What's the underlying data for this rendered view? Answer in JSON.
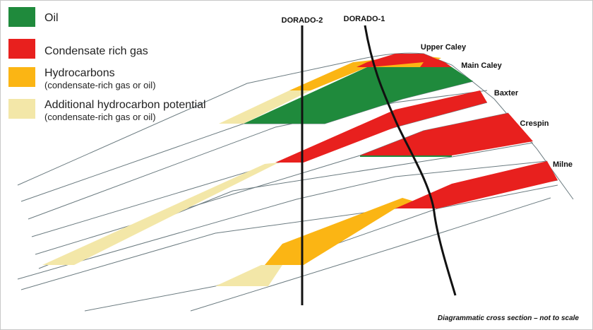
{
  "legend": [
    {
      "label": "Oil"
    },
    {
      "label": "Condensate rich gas"
    },
    {
      "label": "Hydrocarbons",
      "note": "(condensate-rich gas or oil)"
    },
    {
      "label": "Additional hydrocarbon potential",
      "note": "(condensate-rich gas or oil)"
    }
  ],
  "wells": [
    "DORADO-2",
    "DORADO-1"
  ],
  "formations": [
    "Upper Caley",
    "Main Caley",
    "Baxter",
    "Crespin",
    "Milne"
  ],
  "footnote": "Diagrammatic cross section – not to scale"
}
